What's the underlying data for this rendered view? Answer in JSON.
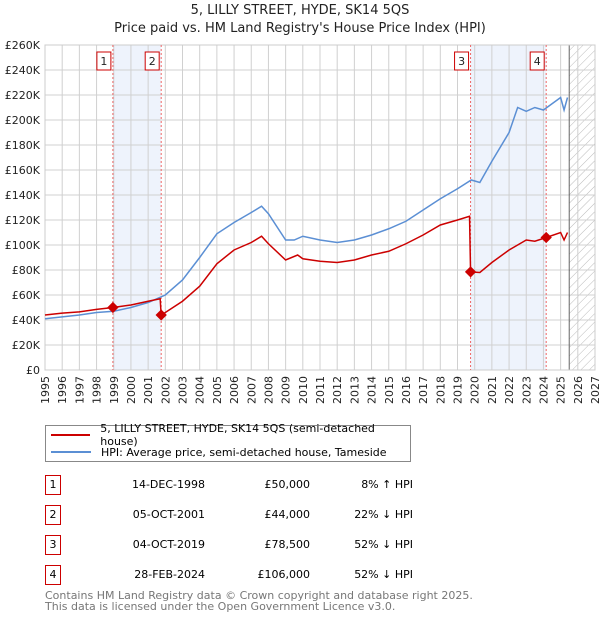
{
  "chart_data": {
    "type": "line",
    "title": "5, LILLY STREET, HYDE, SK14 5QS",
    "subtitle": "Price paid vs. HM Land Registry's House Price Index (HPI)",
    "xlim": [
      1995,
      2027
    ],
    "ylim": [
      0,
      260000
    ],
    "x_ticks": [
      "1995",
      "1996",
      "1997",
      "1998",
      "1999",
      "2000",
      "2001",
      "2002",
      "2003",
      "2004",
      "2005",
      "2006",
      "2007",
      "2008",
      "2009",
      "2010",
      "2011",
      "2012",
      "2013",
      "2014",
      "2015",
      "2016",
      "2017",
      "2018",
      "2019",
      "2020",
      "2021",
      "2022",
      "2023",
      "2024",
      "2025",
      "2026",
      "2027"
    ],
    "y_ticks": [
      {
        "v": 0,
        "label": "£0"
      },
      {
        "v": 20000,
        "label": "£20K"
      },
      {
        "v": 40000,
        "label": "£40K"
      },
      {
        "v": 60000,
        "label": "£60K"
      },
      {
        "v": 80000,
        "label": "£80K"
      },
      {
        "v": 100000,
        "label": "£100K"
      },
      {
        "v": 120000,
        "label": "£120K"
      },
      {
        "v": 140000,
        "label": "£140K"
      },
      {
        "v": 160000,
        "label": "£160K"
      },
      {
        "v": 180000,
        "label": "£180K"
      },
      {
        "v": 200000,
        "label": "£200K"
      },
      {
        "v": 220000,
        "label": "£220K"
      },
      {
        "v": 240000,
        "label": "£240K"
      },
      {
        "v": 260000,
        "label": "£260K"
      }
    ],
    "grid": true,
    "forecast_hatch_from": 2025.5,
    "shaded_ranges": [
      [
        1998.95,
        2001.76
      ],
      [
        2019.76,
        2024.16
      ]
    ],
    "series": [
      {
        "name": "5, LILLY STREET, HYDE, SK14 5QS (semi-detached house)",
        "color": "#cc0000",
        "points": [
          [
            1995,
            44000
          ],
          [
            1996,
            45500
          ],
          [
            1997,
            46500
          ],
          [
            1998,
            48500
          ],
          [
            1998.95,
            50000
          ],
          [
            2000,
            52000
          ],
          [
            2001,
            55000
          ],
          [
            2001.7,
            57000
          ],
          [
            2001.76,
            44000
          ],
          [
            2002,
            46000
          ],
          [
            2003,
            55000
          ],
          [
            2004,
            67000
          ],
          [
            2005,
            85000
          ],
          [
            2006,
            96000
          ],
          [
            2007,
            102000
          ],
          [
            2007.6,
            107000
          ],
          [
            2008,
            101000
          ],
          [
            2009,
            88000
          ],
          [
            2009.7,
            92000
          ],
          [
            2010,
            89000
          ],
          [
            2011,
            87000
          ],
          [
            2012,
            86000
          ],
          [
            2013,
            88000
          ],
          [
            2014,
            92000
          ],
          [
            2015,
            95000
          ],
          [
            2016,
            101000
          ],
          [
            2017,
            108000
          ],
          [
            2018,
            116000
          ],
          [
            2019,
            120000
          ],
          [
            2019.7,
            123000
          ],
          [
            2019.76,
            78500
          ],
          [
            2020.3,
            78000
          ],
          [
            2021,
            86000
          ],
          [
            2022,
            96000
          ],
          [
            2023,
            104000
          ],
          [
            2023.5,
            103000
          ],
          [
            2024.16,
            106000
          ],
          [
            2025,
            110000
          ],
          [
            2025.2,
            104000
          ],
          [
            2025.4,
            110000
          ]
        ]
      },
      {
        "name": "HPI: Average price, semi-detached house, Tameside",
        "color": "#5b8fd4",
        "points": [
          [
            1995,
            41000
          ],
          [
            1996,
            42500
          ],
          [
            1997,
            44000
          ],
          [
            1998,
            46000
          ],
          [
            1999,
            47000
          ],
          [
            2000,
            50000
          ],
          [
            2001,
            54000
          ],
          [
            2002,
            60000
          ],
          [
            2003,
            72000
          ],
          [
            2004,
            90000
          ],
          [
            2005,
            109000
          ],
          [
            2006,
            118000
          ],
          [
            2007,
            126000
          ],
          [
            2007.6,
            131000
          ],
          [
            2008,
            125000
          ],
          [
            2009,
            104000
          ],
          [
            2009.5,
            104000
          ],
          [
            2010,
            107000
          ],
          [
            2011,
            104000
          ],
          [
            2012,
            102000
          ],
          [
            2013,
            104000
          ],
          [
            2014,
            108000
          ],
          [
            2015,
            113000
          ],
          [
            2016,
            119000
          ],
          [
            2017,
            128000
          ],
          [
            2018,
            137000
          ],
          [
            2019,
            145000
          ],
          [
            2019.8,
            152000
          ],
          [
            2020.3,
            150000
          ],
          [
            2021,
            167000
          ],
          [
            2022,
            190000
          ],
          [
            2022.5,
            210000
          ],
          [
            2023,
            207000
          ],
          [
            2023.5,
            210000
          ],
          [
            2024,
            208000
          ],
          [
            2024.5,
            213000
          ],
          [
            2025,
            218000
          ],
          [
            2025.2,
            208000
          ],
          [
            2025.4,
            218000
          ]
        ]
      }
    ],
    "markers": [
      {
        "label": "1",
        "x": 1998.95,
        "y": 50000
      },
      {
        "label": "2",
        "x": 2001.76,
        "y": 44000
      },
      {
        "label": "3",
        "x": 2019.76,
        "y": 78500
      },
      {
        "label": "4",
        "x": 2024.16,
        "y": 106000
      }
    ]
  },
  "legend": [
    "5, LILLY STREET, HYDE, SK14 5QS (semi-detached house)",
    "HPI: Average price, semi-detached house, Tameside"
  ],
  "table": [
    {
      "num": "1",
      "date": "14-DEC-1998",
      "price": "£50,000",
      "hpi": "8% ↑ HPI"
    },
    {
      "num": "2",
      "date": "05-OCT-2001",
      "price": "£44,000",
      "hpi": "22% ↓ HPI"
    },
    {
      "num": "3",
      "date": "04-OCT-2019",
      "price": "£78,500",
      "hpi": "52% ↓ HPI"
    },
    {
      "num": "4",
      "date": "28-FEB-2024",
      "price": "£106,000",
      "hpi": "52% ↓ HPI"
    }
  ],
  "footer": [
    "Contains HM Land Registry data © Crown copyright and database right 2025.",
    "This data is licensed under the Open Government Licence v3.0."
  ]
}
